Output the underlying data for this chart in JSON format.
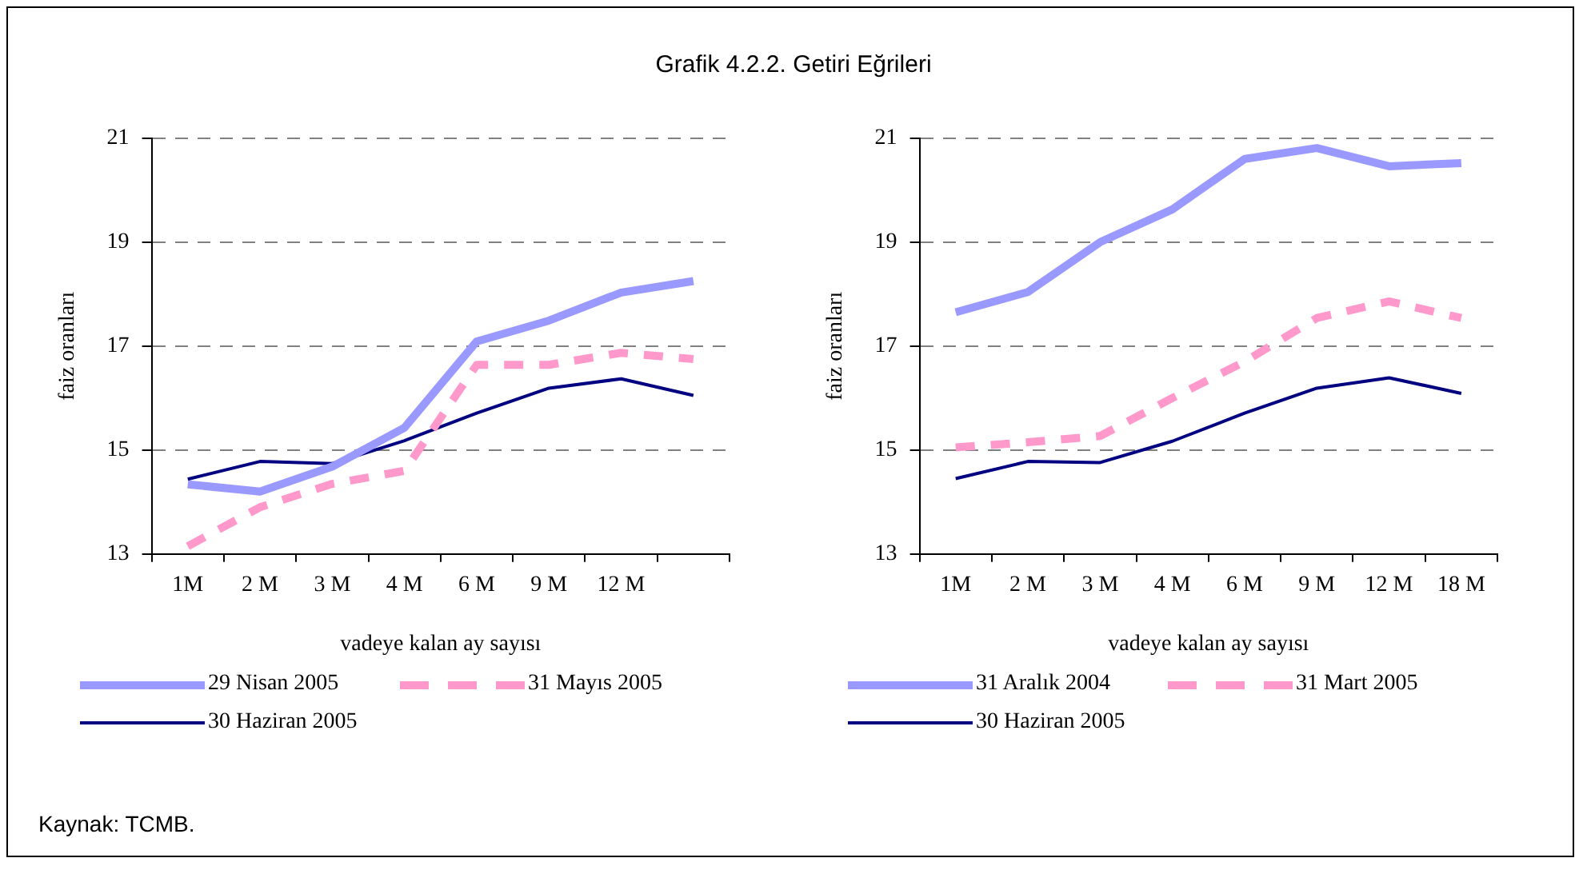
{
  "chart_data": [
    {
      "type": "line",
      "title": "Grafik 4.2.2. Getiri Eğrileri",
      "xlabel": "vadeye kalan ay sayısı",
      "ylabel": "faiz oranları",
      "categories": [
        "1M",
        "2 M",
        "3 M",
        "4 M",
        "6 M",
        "9 M",
        "12 M",
        null
      ],
      "series": [
        {
          "name": "29 Nisan 2005",
          "color": "#9999ff",
          "line_style": "solid",
          "values": [
            14.34,
            14.2,
            14.68,
            15.43,
            17.09,
            17.49,
            18.03,
            18.25
          ]
        },
        {
          "name": "31 Mayıs 2005",
          "color": "#ff99cc",
          "line_style": "dashed",
          "values": [
            13.15,
            13.9,
            14.35,
            14.6,
            16.64,
            16.64,
            16.87,
            16.75
          ]
        },
        {
          "name": "30 Haziran 2005",
          "color": "#000080",
          "line_style": "solid",
          "values": [
            14.44,
            14.78,
            14.74,
            15.18,
            15.71,
            16.19,
            16.37,
            16.05
          ]
        }
      ],
      "ylim": [
        13,
        21
      ],
      "yticks": [
        13,
        15,
        17,
        19,
        21
      ],
      "grid": "y",
      "legend": "bottom",
      "marker": "none",
      "annotations": [
        "Kaynak: TCMB."
      ]
    },
    {
      "type": "line",
      "xlabel": "vadeye kalan ay sayısı",
      "ylabel": "faiz oranları",
      "categories": [
        "1M",
        "2 M",
        "3 M",
        "4 M",
        "6 M",
        "9 M",
        "12 M",
        "18 M"
      ],
      "series": [
        {
          "name": "31 Aralık 2004",
          "color": "#9999ff",
          "line_style": "solid",
          "values": [
            17.65,
            18.04,
            19.0,
            19.63,
            20.6,
            20.81,
            20.46,
            20.52
          ]
        },
        {
          "name": "31 Mart 2005",
          "color": "#ff99cc",
          "line_style": "dashed",
          "values": [
            15.05,
            15.15,
            15.27,
            16.0,
            16.7,
            17.54,
            17.86,
            17.54
          ]
        },
        {
          "name": "30 Haziran 2005",
          "color": "#000080",
          "line_style": "solid",
          "values": [
            14.45,
            14.78,
            14.76,
            15.17,
            15.71,
            16.19,
            16.39,
            16.09
          ]
        }
      ],
      "ylim": [
        13,
        21
      ],
      "yticks": [
        13,
        15,
        17,
        19,
        21
      ],
      "grid": "y",
      "legend": "bottom",
      "marker": "none"
    }
  ]
}
